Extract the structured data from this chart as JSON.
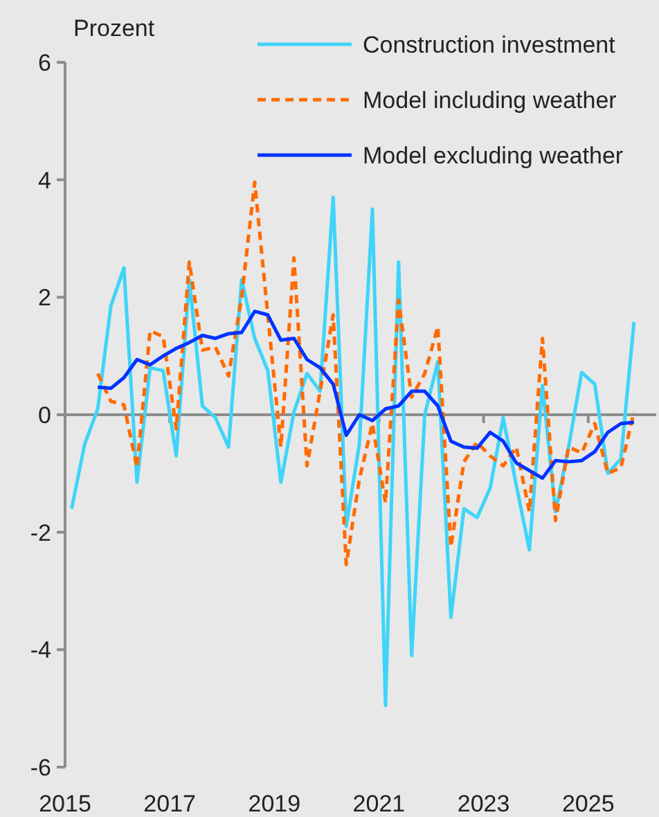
{
  "chart_data": {
    "type": "line",
    "ylabel": "Prozent",
    "x": [
      2015.125,
      2015.375,
      2015.625,
      2015.875,
      2016.125,
      2016.375,
      2016.625,
      2016.875,
      2017.125,
      2017.375,
      2017.625,
      2017.875,
      2018.125,
      2018.375,
      2018.625,
      2018.875,
      2019.125,
      2019.375,
      2019.625,
      2019.875,
      2020.125,
      2020.375,
      2020.625,
      2020.875,
      2021.125,
      2021.375,
      2021.625,
      2021.875,
      2022.125,
      2022.375,
      2022.625,
      2022.875,
      2023.125,
      2023.375,
      2023.625,
      2023.875,
      2024.125,
      2024.375,
      2024.625,
      2024.875,
      2025.125,
      2025.375,
      2025.625,
      2025.875
    ],
    "series": [
      {
        "name": "Construction investment",
        "color": "#3fd4f9",
        "line_style": "solid",
        "values": [
          -1.6,
          -0.5,
          0.1,
          1.85,
          2.5,
          -1.15,
          0.8,
          0.75,
          -0.7,
          2.3,
          0.15,
          -0.05,
          -0.55,
          2.3,
          1.3,
          0.75,
          -1.15,
          0.05,
          0.7,
          0.4,
          3.7,
          -1.9,
          -0.5,
          3.5,
          -4.95,
          2.6,
          -4.1,
          0.0,
          0.9,
          -3.45,
          -1.6,
          -1.75,
          -1.25,
          -0.05,
          -1.2,
          -2.3,
          0.5,
          -1.65,
          -0.55,
          0.72,
          0.52,
          -1.0,
          -0.75,
          1.58
        ]
      },
      {
        "name": "Model including weather",
        "color": "#ff6a00",
        "line_style": "dashed",
        "values": [
          null,
          null,
          0.7,
          0.23,
          0.17,
          -0.9,
          1.43,
          1.33,
          -0.24,
          2.6,
          1.1,
          1.15,
          0.66,
          2.0,
          3.96,
          1.7,
          -0.55,
          2.67,
          -0.87,
          0.4,
          1.7,
          -2.55,
          -1.1,
          -0.15,
          -1.5,
          1.95,
          0.3,
          0.7,
          1.5,
          -2.25,
          -0.8,
          -0.47,
          -0.7,
          -0.87,
          -0.55,
          -1.65,
          1.3,
          -1.8,
          -0.55,
          -0.65,
          -0.15,
          -1.0,
          -0.9,
          0.05
        ]
      },
      {
        "name": "Model excluding weather",
        "color": "#0033ff",
        "line_style": "solid",
        "values": [
          null,
          null,
          0.47,
          0.45,
          0.63,
          0.94,
          0.85,
          1.0,
          1.13,
          1.23,
          1.35,
          1.3,
          1.38,
          1.4,
          1.76,
          1.7,
          1.27,
          1.3,
          0.94,
          0.8,
          0.52,
          -0.35,
          0.0,
          -0.1,
          0.1,
          0.15,
          0.4,
          0.4,
          0.15,
          -0.45,
          -0.55,
          -0.57,
          -0.3,
          -0.45,
          -0.82,
          -0.95,
          -1.08,
          -0.78,
          -0.8,
          -0.78,
          -0.63,
          -0.3,
          -0.15,
          -0.13
        ]
      }
    ],
    "xlim": [
      2015,
      2026.3
    ],
    "xticks": [
      2015,
      2017,
      2019,
      2021,
      2023,
      2025
    ],
    "ylim": [
      -6,
      6
    ],
    "yticks": [
      -6,
      -4,
      -2,
      0,
      2,
      4,
      6
    ],
    "legend": "top right",
    "marker": "none"
  }
}
